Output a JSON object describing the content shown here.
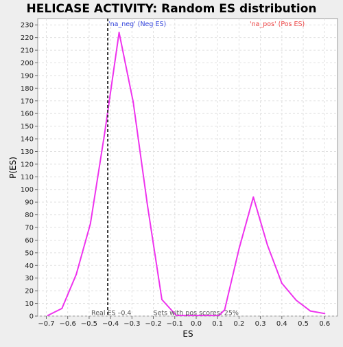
{
  "chart_data": {
    "type": "line",
    "title": "HELICASE ACTIVITY: Random ES distribution",
    "xlabel": "ES",
    "ylabel": "P(ES)",
    "xlim": [
      -0.74,
      0.66
    ],
    "ylim": [
      0,
      235
    ],
    "x_ticks": [
      -0.7,
      -0.6,
      -0.5,
      -0.4,
      -0.3,
      -0.2,
      -0.1,
      0.0,
      0.1,
      0.2,
      0.3,
      0.4,
      0.5,
      0.6
    ],
    "x_tick_labels": [
      "−0.7",
      "−0.6",
      "−0.5",
      "−0.4",
      "−0.3",
      "−0.2",
      "−0.1",
      "0.0",
      "0.1",
      "0.2",
      "0.3",
      "0.4",
      "0.5",
      "0.6"
    ],
    "y_ticks": [
      0,
      10,
      20,
      30,
      40,
      50,
      60,
      70,
      80,
      90,
      100,
      110,
      120,
      130,
      140,
      150,
      160,
      170,
      180,
      190,
      200,
      210,
      220,
      230
    ],
    "grid": true,
    "series": [
      {
        "color": "#ee33ee",
        "x": [
          -0.693,
          -0.627,
          -0.56,
          -0.494,
          -0.427,
          -0.36,
          -0.294,
          -0.227,
          -0.16,
          -0.093,
          -0.027,
          0.04,
          0.107,
          0.133,
          0.2,
          0.267,
          0.333,
          0.4,
          0.467,
          0.533,
          0.6
        ],
        "y": [
          0.5,
          6,
          33,
          73,
          145,
          224,
          169,
          87,
          13,
          0.5,
          0.5,
          0.5,
          0.5,
          5,
          53,
          94,
          56,
          26,
          12.5,
          4,
          2
        ]
      }
    ],
    "marker_line": {
      "x": -0.413,
      "color": "#333333",
      "style": "dashed"
    },
    "annotations": [
      {
        "id": "neg-label",
        "text": "'na_neg' (Neg ES)",
        "color": "#3344dd",
        "x": -0.41,
        "y": 229
      },
      {
        "id": "pos-label",
        "text": "'na_pos' (Pos ES)",
        "color": "#ee4444",
        "x": 0.25,
        "y": 229
      },
      {
        "id": "real-es",
        "text": "Real ES –0.4",
        "color": "#555555",
        "x": -0.49,
        "y": 0.7
      },
      {
        "id": "pos-scores",
        "text": "Sets with pos scores: 25%",
        "color": "#555555",
        "x": -0.2,
        "y": 0.7
      }
    ],
    "plot_background": "#ffffff",
    "page_background": "#eeeeee"
  }
}
